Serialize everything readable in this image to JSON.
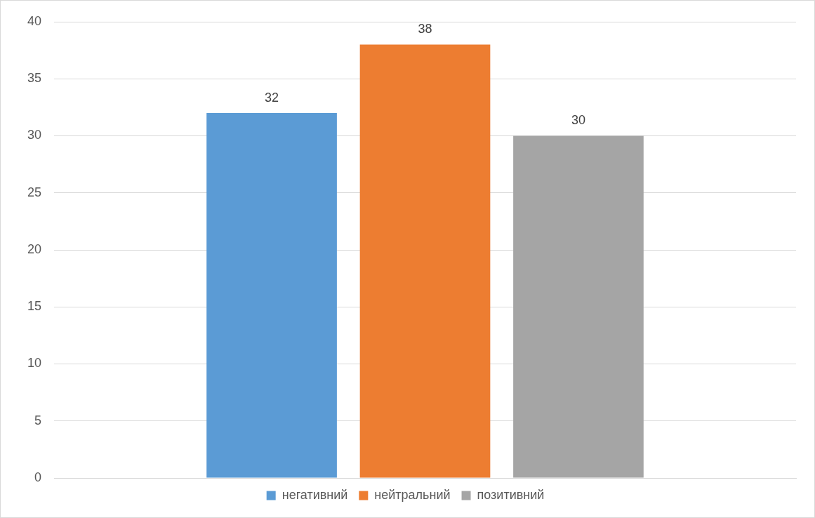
{
  "chart_data": {
    "type": "bar",
    "categories": [
      null
    ],
    "series": [
      {
        "name": "негативний",
        "color": "#5b9bd5",
        "values": [
          32
        ]
      },
      {
        "name": "нейтральний",
        "color": "#ed7d31",
        "values": [
          38
        ]
      },
      {
        "name": "позитивний",
        "color": "#a5a5a5",
        "values": [
          30
        ]
      }
    ],
    "ylim": [
      0,
      40
    ],
    "yticks": [
      0,
      5,
      10,
      15,
      20,
      25,
      30,
      35,
      40
    ],
    "grid": "y",
    "legend": "bottom",
    "data_labels": true,
    "tick_labels": "y"
  }
}
